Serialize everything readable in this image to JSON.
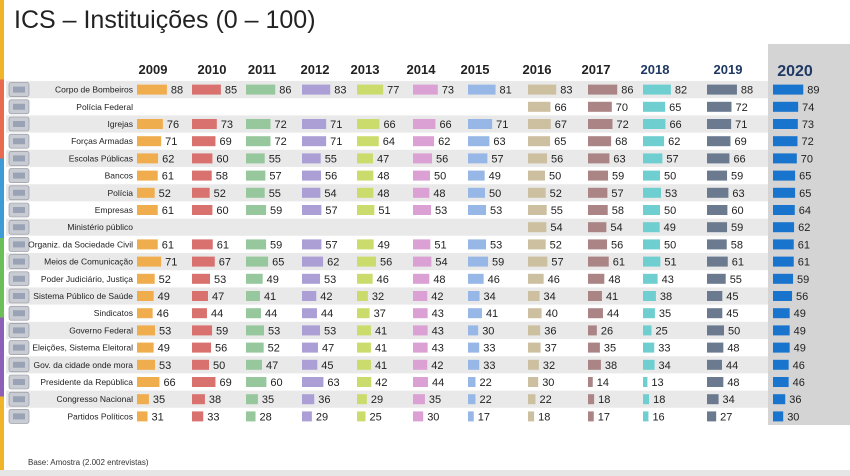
{
  "page": {
    "title": "ICS – Instituições (0 – 100)",
    "footnote": "Base: Amostra  (2.002 entrevistas)",
    "accent_colors": [
      "#f0b429",
      "#e86a4f",
      "#3d9bd6",
      "#6bbf59",
      "#8d5fb8",
      "#f0b429"
    ]
  },
  "chart_data": {
    "type": "bar",
    "title": "ICS – Instituições (0 – 100)",
    "xlabel": "",
    "ylabel": "",
    "grid": false,
    "categories": [
      "Corpo de Bombeiros",
      "Polícia Federal",
      "Igrejas",
      "Forças Armadas",
      "Escolas Públicas",
      "Bancos",
      "Polícia",
      "Empresas",
      "Ministério público",
      "Organiz. da Sociedade Civil",
      "Meios de Comunicação",
      "Poder Judiciário, Justiça",
      "Sistema Público de Saúde",
      "Sindicatos",
      "Governo Federal",
      "Eleições, Sistema Eleitoral",
      "Gov. da cidade onde mora",
      "Presidente da República",
      "Congresso Nacional",
      "Partidos Políticos"
    ],
    "category_icons": [
      "fire-truck-icon",
      "police-badge-icon",
      "church-icon",
      "tank-icon",
      "school-icon",
      "bank-icon",
      "police-icon",
      "factory-icon",
      "prosecutor-icon",
      "people-icon",
      "media-icon",
      "gavel-icon",
      "health-icon",
      "union-icon",
      "government-icon",
      "ballot-box-icon",
      "city-hall-icon",
      "president-icon",
      "congress-icon",
      "party-flag-icon"
    ],
    "series": [
      {
        "name": "2009",
        "color": "#f0ad4e",
        "values": [
          88,
          null,
          76,
          71,
          62,
          61,
          52,
          61,
          null,
          61,
          71,
          52,
          49,
          46,
          53,
          49,
          53,
          66,
          35,
          31
        ]
      },
      {
        "name": "2010",
        "color": "#d9716e",
        "values": [
          85,
          null,
          73,
          69,
          60,
          58,
          52,
          60,
          null,
          61,
          67,
          53,
          47,
          44,
          59,
          56,
          50,
          69,
          38,
          33
        ]
      },
      {
        "name": "2011",
        "color": "#97c79c",
        "values": [
          86,
          null,
          72,
          72,
          55,
          57,
          55,
          59,
          null,
          59,
          65,
          49,
          41,
          44,
          53,
          52,
          47,
          60,
          35,
          28
        ]
      },
      {
        "name": "2012",
        "color": "#ab9fd6",
        "values": [
          83,
          null,
          71,
          71,
          55,
          56,
          54,
          57,
          null,
          57,
          62,
          53,
          42,
          44,
          53,
          47,
          45,
          63,
          36,
          29
        ]
      },
      {
        "name": "2013",
        "color": "#cbdc6d",
        "values": [
          77,
          null,
          66,
          64,
          47,
          48,
          48,
          51,
          null,
          49,
          56,
          46,
          32,
          37,
          41,
          41,
          41,
          42,
          29,
          25
        ]
      },
      {
        "name": "2014",
        "color": "#dba0d4",
        "values": [
          73,
          null,
          66,
          62,
          56,
          50,
          48,
          53,
          null,
          51,
          54,
          48,
          42,
          43,
          43,
          43,
          42,
          44,
          35,
          30
        ]
      },
      {
        "name": "2015",
        "color": "#97b8e6",
        "values": [
          81,
          null,
          71,
          63,
          57,
          49,
          50,
          53,
          null,
          53,
          59,
          46,
          34,
          41,
          30,
          33,
          33,
          22,
          22,
          17
        ]
      },
      {
        "name": "2016",
        "color": "#cdc0a0",
        "values": [
          83,
          66,
          67,
          65,
          56,
          50,
          52,
          55,
          54,
          52,
          57,
          46,
          34,
          40,
          36,
          37,
          32,
          30,
          22,
          18
        ]
      },
      {
        "name": "2017",
        "color": "#ab8585",
        "values": [
          86,
          70,
          72,
          68,
          63,
          59,
          57,
          58,
          54,
          56,
          61,
          48,
          41,
          44,
          26,
          35,
          38,
          14,
          18,
          17
        ]
      },
      {
        "name": "2018",
        "color": "#6fcfd0",
        "values": [
          82,
          65,
          66,
          62,
          57,
          50,
          53,
          50,
          49,
          50,
          51,
          43,
          38,
          35,
          25,
          33,
          34,
          13,
          18,
          16
        ]
      },
      {
        "name": "2019",
        "color": "#6b7a8f",
        "values": [
          88,
          72,
          71,
          69,
          66,
          59,
          63,
          60,
          59,
          58,
          61,
          55,
          45,
          45,
          50,
          48,
          44,
          48,
          34,
          27
        ]
      },
      {
        "name": "2020",
        "color": "#1874cd",
        "values": [
          89,
          74,
          73,
          72,
          70,
          65,
          65,
          64,
          62,
          61,
          61,
          59,
          56,
          49,
          49,
          49,
          46,
          46,
          36,
          30
        ]
      }
    ]
  }
}
